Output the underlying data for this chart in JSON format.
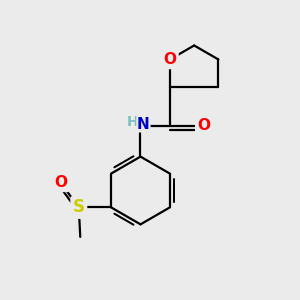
{
  "bg_color": "#ebebeb",
  "atom_colors": {
    "O": "#ff0000",
    "N": "#0000cd",
    "S": "#cccc00",
    "C": "#000000",
    "H": "#7fbfbf"
  },
  "line_color": "#000000",
  "line_width": 1.6,
  "font_size_atom": 11
}
